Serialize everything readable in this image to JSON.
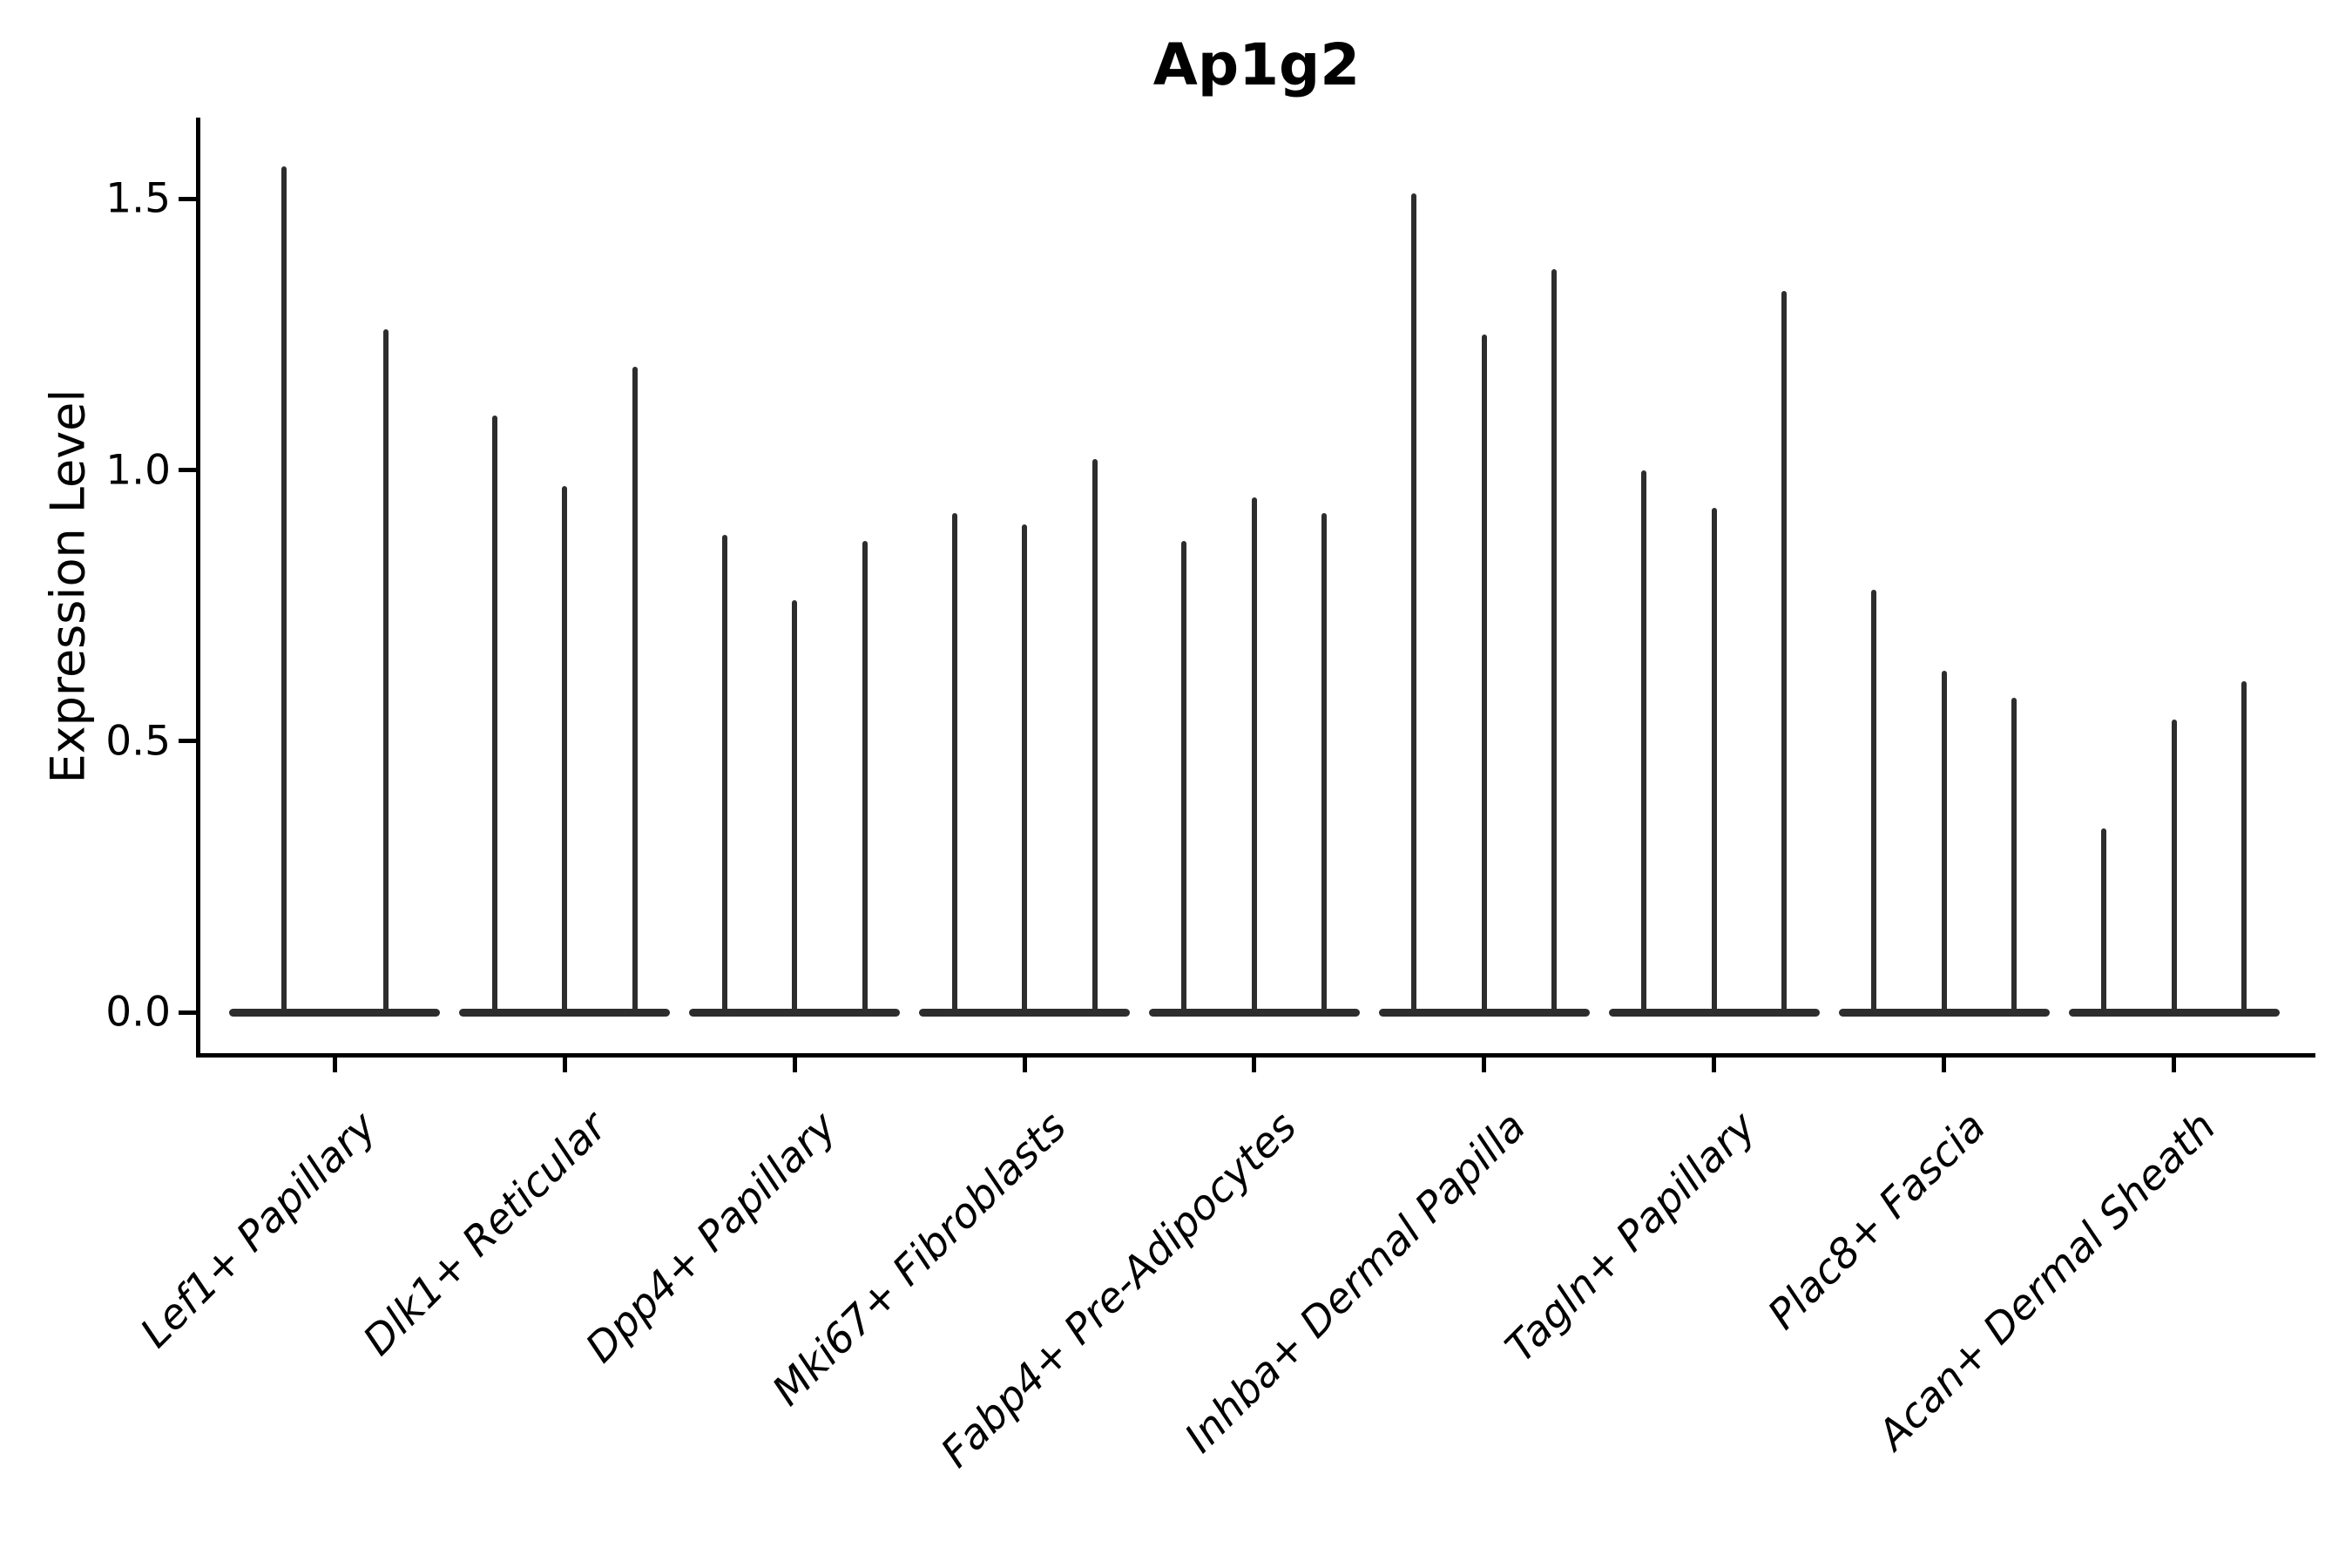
{
  "title": "Ap1g2",
  "chart_data": {
    "type": "violin",
    "title": "Ap1g2",
    "xlabel": "",
    "ylabel": "Expression Level",
    "ylim": [
      -0.08,
      1.65
    ],
    "grid": false,
    "legend": "none",
    "xtick_rotation": 45,
    "violin_color": "#2d2d2d",
    "yticks": [
      {
        "value": 0.0,
        "label": "0.0"
      },
      {
        "value": 0.5,
        "label": "0.5"
      },
      {
        "value": 1.0,
        "label": "1.0"
      },
      {
        "value": 1.5,
        "label": "1.5"
      }
    ],
    "categories": [
      "Lef1+ Papillary",
      "Dlk1+ Reticular",
      "Dpp4+ Papillary",
      "Mki67+ Fibroblasts",
      "Fabp4+ Pre-Adipocytes",
      "Inhba+ Dermal Papilla",
      "Tagln+ Papillary",
      "Plac8+ Fascia",
      "Acan+ Dermal Sheath"
    ],
    "series": [
      {
        "category": "Lef1+ Papillary",
        "violin_maxima": [
          1.56,
          1.26
        ]
      },
      {
        "category": "Dlk1+ Reticular",
        "violin_maxima": [
          1.1,
          0.97,
          1.19
        ]
      },
      {
        "category": "Dpp4+ Papillary",
        "violin_maxima": [
          0.88,
          0.76,
          0.87
        ]
      },
      {
        "category": "Mki67+ Fibroblasts",
        "violin_maxima": [
          0.92,
          0.9,
          1.02
        ]
      },
      {
        "category": "Fabp4+ Pre-Adipocytes",
        "violin_maxima": [
          0.87,
          0.95,
          0.92
        ]
      },
      {
        "category": "Inhba+ Dermal Papilla",
        "violin_maxima": [
          1.51,
          1.25,
          1.37
        ]
      },
      {
        "category": "Tagln+ Papillary",
        "violin_maxima": [
          1.0,
          0.93,
          1.33
        ]
      },
      {
        "category": "Plac8+ Fascia",
        "violin_maxima": [
          0.78,
          0.63,
          0.58
        ]
      },
      {
        "category": "Acan+ Dermal Sheath",
        "violin_maxima": [
          0.34,
          0.54,
          0.61
        ]
      }
    ]
  }
}
